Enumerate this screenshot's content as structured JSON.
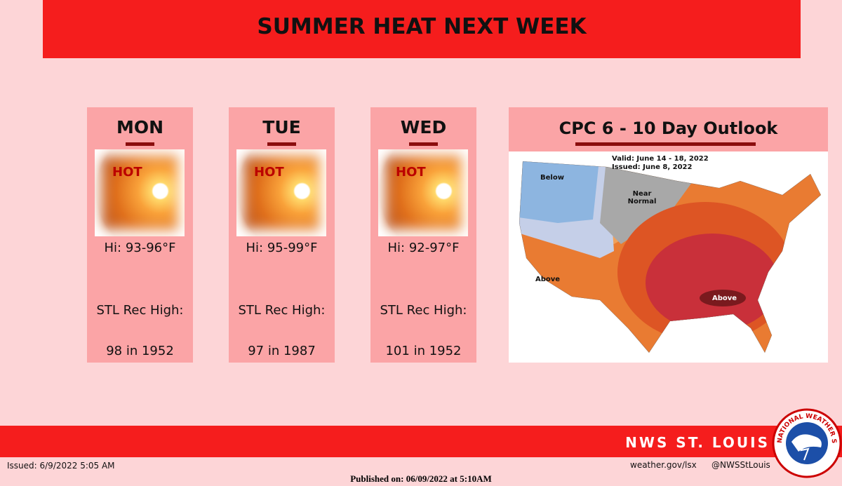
{
  "header": {
    "title": "SUMMER HEAT NEXT WEEK"
  },
  "days": [
    {
      "day": "MON",
      "image_label": "HOT",
      "hi": "Hi: 93-96°F",
      "record_label": "STL Rec High:",
      "record": "98 in 1952"
    },
    {
      "day": "TUE",
      "image_label": "HOT",
      "hi": "Hi: 95-99°F",
      "record_label": "STL Rec High:",
      "record": "97 in 1987"
    },
    {
      "day": "WED",
      "image_label": "HOT",
      "hi": "Hi: 92-97°F",
      "record_label": "STL Rec High:",
      "record": "101 in 1952"
    }
  ],
  "outlook": {
    "title": "CPC 6 - 10 Day Outlook",
    "valid": "Valid:  June 14 - 18, 2022",
    "issued": "Issued:  June 8, 2022",
    "labels": [
      "Below",
      "Near Normal",
      "Above",
      "Above"
    ]
  },
  "footer": {
    "office": "NWS ST. LOUIS",
    "issued": "Issued: 6/9/2022 5:05 AM",
    "website": "weather.gov/lsx",
    "social": "@NWSStLouis",
    "published": "Published on: 06/09/2022 at 5:10AM",
    "logo": "NATIONAL WEATHER SERVICE"
  }
}
